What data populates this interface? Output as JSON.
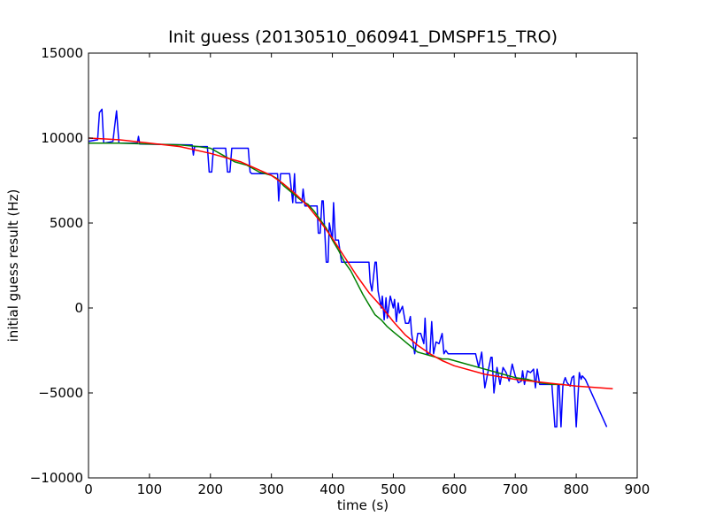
{
  "chart_data": {
    "type": "line",
    "title": "Init guess (20130510_060941_DMSPF15_TRO)",
    "xlabel": "time (s)",
    "ylabel": "initial guess result (Hz)",
    "xlim": [
      0,
      900
    ],
    "ylim": [
      -10000,
      15000
    ],
    "xticks": [
      0,
      100,
      200,
      300,
      400,
      500,
      600,
      700,
      800,
      900
    ],
    "yticks": [
      -10000,
      -5000,
      0,
      5000,
      10000,
      15000
    ],
    "grid": false,
    "legend": "none",
    "series": [
      {
        "color": "#0000ff",
        "x": [
          0,
          15,
          18,
          22,
          25,
          40,
          43,
          46,
          50,
          80,
          82,
          84,
          170,
          172,
          174,
          195,
          198,
          202,
          205,
          215,
          225,
          228,
          232,
          235,
          250,
          262,
          265,
          268,
          300,
          310,
          312,
          315,
          320,
          330,
          335,
          338,
          340,
          345,
          350,
          352,
          355,
          375,
          377,
          380,
          383,
          385,
          390,
          393,
          395,
          400,
          402,
          405,
          410,
          415,
          418,
          420,
          425,
          430,
          435,
          440,
          445,
          450,
          460,
          462,
          465,
          470,
          472,
          475,
          480,
          482,
          485,
          488,
          490,
          495,
          500,
          502,
          505,
          508,
          510,
          515,
          520,
          525,
          528,
          530,
          535,
          540,
          545,
          550,
          552,
          555,
          560,
          563,
          566,
          570,
          575,
          580,
          583,
          586,
          590,
          600,
          610,
          612,
          615,
          620,
          630,
          635,
          640,
          645,
          650,
          660,
          662,
          665,
          670,
          675,
          680,
          685,
          690,
          695,
          700,
          705,
          710,
          712,
          715,
          720,
          725,
          730,
          733,
          736,
          740,
          750,
          760,
          765,
          768,
          770,
          772,
          775,
          778,
          780,
          782,
          785,
          790,
          793,
          796,
          800,
          805,
          808,
          810,
          815,
          850
        ],
        "y": [
          9800,
          9900,
          11500,
          11700,
          9700,
          9800,
          10700,
          11600,
          9700,
          9700,
          10100,
          9650,
          9600,
          9000,
          9500,
          9500,
          8000,
          8000,
          9400,
          9400,
          9400,
          8000,
          8000,
          9400,
          9400,
          9400,
          8000,
          7900,
          7900,
          7900,
          6300,
          7900,
          7900,
          7900,
          6200,
          7900,
          6200,
          6200,
          6200,
          7000,
          6000,
          6000,
          4400,
          4400,
          6300,
          6300,
          2700,
          2700,
          5000,
          4000,
          6200,
          4000,
          4000,
          2700,
          2700,
          2700,
          2700,
          2700,
          2700,
          2700,
          2700,
          2700,
          2700,
          1500,
          1000,
          2700,
          2700,
          1000,
          0,
          700,
          -700,
          600,
          -600,
          700,
          0,
          500,
          -800,
          300,
          -300,
          100,
          -900,
          -900,
          -500,
          -1500,
          -2700,
          -1500,
          -1500,
          -2100,
          -600,
          -2700,
          -2700,
          -800,
          -2700,
          -2000,
          -2100,
          -1500,
          -2700,
          -2500,
          -2700,
          -2700,
          -2700,
          -2700,
          -2700,
          -2700,
          -2700,
          -2700,
          -3500,
          -2600,
          -4700,
          -2900,
          -2900,
          -5000,
          -3500,
          -4500,
          -3500,
          -3800,
          -4300,
          -3300,
          -4000,
          -4400,
          -4300,
          -3700,
          -4500,
          -3700,
          -3800,
          -3600,
          -4700,
          -3600,
          -4500,
          -4500,
          -4500,
          -7000,
          -7000,
          -4500,
          -4500,
          -7000,
          -4600,
          -4300,
          -4100,
          -4400,
          -4600,
          -4100,
          -4000,
          -7000,
          -3800,
          -4200,
          -4000,
          -4200,
          -7000
        ]
      },
      {
        "color": "#008000",
        "x": [
          0,
          20,
          50,
          100,
          150,
          180,
          200,
          220,
          240,
          260,
          280,
          300,
          310,
          320,
          330,
          340,
          350,
          360,
          370,
          380,
          390,
          400,
          410,
          420,
          430,
          440,
          450,
          460,
          470,
          480,
          490,
          500,
          510,
          520,
          530,
          540,
          550,
          560,
          570,
          580,
          590,
          600,
          620,
          640,
          660,
          680,
          700,
          720,
          740,
          760,
          780
        ],
        "y": [
          9700,
          9700,
          9700,
          9650,
          9600,
          9500,
          9400,
          9000,
          8600,
          8400,
          8000,
          7800,
          7600,
          7200,
          6900,
          6600,
          6300,
          6100,
          5700,
          5200,
          4700,
          4000,
          3400,
          2700,
          2200,
          1500,
          800,
          200,
          -400,
          -700,
          -1100,
          -1400,
          -1700,
          -2000,
          -2300,
          -2600,
          -2700,
          -2800,
          -2900,
          -3000,
          -3000,
          -3100,
          -3300,
          -3500,
          -3700,
          -3900,
          -4100,
          -4200,
          -4400,
          -4500,
          -4500
        ]
      },
      {
        "color": "#ff0000",
        "x": [
          0,
          50,
          100,
          150,
          200,
          250,
          300,
          320,
          340,
          360,
          380,
          400,
          420,
          440,
          460,
          480,
          500,
          520,
          540,
          560,
          580,
          600,
          650,
          700,
          750,
          800,
          860
        ],
        "y": [
          10000,
          9900,
          9700,
          9500,
          9100,
          8600,
          7800,
          7300,
          6700,
          6000,
          5100,
          4100,
          3000,
          1900,
          900,
          100,
          -800,
          -1600,
          -2200,
          -2700,
          -3100,
          -3400,
          -3900,
          -4200,
          -4400,
          -4600,
          -4750
        ]
      }
    ]
  }
}
